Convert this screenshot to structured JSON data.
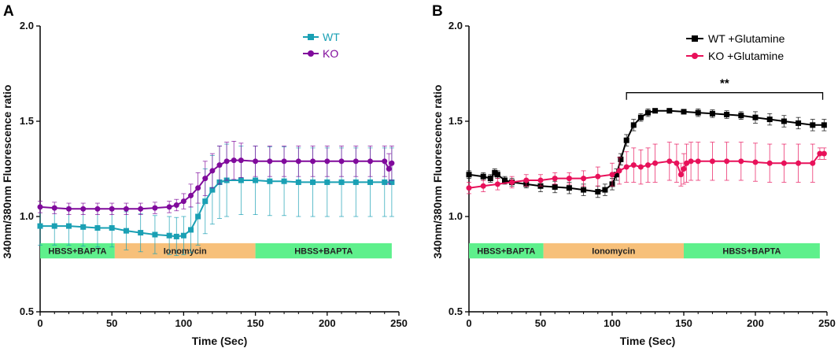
{
  "colors": {
    "wt": "#1aa0b4",
    "ko": "#800a9c",
    "wt_glut": "#000000",
    "ko_glut": "#e8115a",
    "bar_hbss": "#5ef08c",
    "bar_iono": "#f7c07a"
  },
  "chart_data": [
    {
      "panel_label": "A",
      "type": "line",
      "title": "",
      "xlabel": "Time (Sec)",
      "ylabel": "340nm/380nm Fluorescence ratio",
      "xlim": [
        0,
        250
      ],
      "ylim": [
        0.5,
        2.0
      ],
      "xticks": [
        "0",
        "50",
        "100",
        "150",
        "200",
        "250"
      ],
      "yticks": [
        "0.5",
        "1.0",
        "1.5",
        "2.0"
      ],
      "legend_position": "top-right",
      "series": [
        {
          "name": "WT",
          "color_key": "wt",
          "marker": "square",
          "x": [
            0,
            10,
            20,
            30,
            40,
            50,
            60,
            70,
            80,
            90,
            95,
            100,
            105,
            110,
            115,
            120,
            125,
            130,
            140,
            150,
            160,
            170,
            180,
            190,
            200,
            210,
            220,
            230,
            240,
            245
          ],
          "y": [
            0.95,
            0.95,
            0.95,
            0.945,
            0.94,
            0.94,
            0.925,
            0.915,
            0.905,
            0.9,
            0.895,
            0.9,
            0.93,
            1.0,
            1.08,
            1.14,
            1.18,
            1.19,
            1.19,
            1.19,
            1.185,
            1.185,
            1.18,
            1.18,
            1.18,
            1.18,
            1.18,
            1.18,
            1.18,
            1.18
          ],
          "err": [
            0.1,
            0.1,
            0.1,
            0.1,
            0.1,
            0.1,
            0.1,
            0.1,
            0.1,
            0.1,
            0.1,
            0.1,
            0.12,
            0.15,
            0.17,
            0.18,
            0.19,
            0.19,
            0.18,
            0.18,
            0.18,
            0.18,
            0.18,
            0.18,
            0.18,
            0.18,
            0.18,
            0.18,
            0.18,
            0.18
          ]
        },
        {
          "name": "KO",
          "color_key": "ko",
          "marker": "circle",
          "x": [
            0,
            10,
            20,
            30,
            40,
            50,
            60,
            70,
            80,
            90,
            95,
            100,
            105,
            110,
            115,
            120,
            125,
            130,
            135,
            140,
            150,
            160,
            170,
            180,
            190,
            200,
            210,
            220,
            230,
            240,
            243,
            245
          ],
          "y": [
            1.05,
            1.045,
            1.04,
            1.04,
            1.04,
            1.04,
            1.04,
            1.04,
            1.045,
            1.05,
            1.06,
            1.08,
            1.11,
            1.15,
            1.2,
            1.24,
            1.27,
            1.29,
            1.295,
            1.295,
            1.29,
            1.29,
            1.29,
            1.29,
            1.29,
            1.29,
            1.29,
            1.29,
            1.29,
            1.29,
            1.25,
            1.28
          ],
          "err": [
            0.03,
            0.03,
            0.03,
            0.03,
            0.03,
            0.03,
            0.03,
            0.03,
            0.03,
            0.03,
            0.03,
            0.04,
            0.06,
            0.08,
            0.09,
            0.09,
            0.1,
            0.1,
            0.1,
            0.09,
            0.08,
            0.08,
            0.08,
            0.08,
            0.08,
            0.08,
            0.08,
            0.08,
            0.08,
            0.08,
            0.08,
            0.09
          ]
        }
      ],
      "treatment_bar": [
        {
          "label": "HBSS+BAPTA",
          "start": 0,
          "end": 52,
          "color_key": "bar_hbss"
        },
        {
          "label": "Ionomycin",
          "start": 52,
          "end": 150,
          "color_key": "bar_iono"
        },
        {
          "label": "HBSS+BAPTA",
          "start": 150,
          "end": 245,
          "color_key": "bar_hbss"
        }
      ],
      "treatment_bar_y": [
        0.78,
        0.86
      ]
    },
    {
      "panel_label": "B",
      "type": "line",
      "title": "",
      "xlabel": "Time (Sec)",
      "ylabel": "340nm/380nm Fluorescence ratio",
      "xlim": [
        0,
        250
      ],
      "ylim": [
        0.5,
        2.0
      ],
      "xticks": [
        "0",
        "50",
        "100",
        "150",
        "200",
        "250"
      ],
      "yticks": [
        "0.5",
        "1.0",
        "1.5",
        "2.0"
      ],
      "legend_position": "top-right",
      "significance": {
        "label": "**",
        "x_start": 110,
        "x_end": 247,
        "y": 1.65
      },
      "series": [
        {
          "name": "WT +Glutamine",
          "color_key": "wt_glut",
          "marker": "square",
          "x": [
            0,
            10,
            15,
            18,
            20,
            25,
            30,
            40,
            50,
            60,
            70,
            80,
            90,
            95,
            100,
            103,
            106,
            110,
            115,
            120,
            125,
            130,
            140,
            150,
            160,
            170,
            180,
            190,
            200,
            210,
            220,
            230,
            240,
            248
          ],
          "y": [
            1.22,
            1.21,
            1.2,
            1.23,
            1.22,
            1.19,
            1.18,
            1.17,
            1.16,
            1.155,
            1.15,
            1.14,
            1.13,
            1.14,
            1.17,
            1.22,
            1.3,
            1.4,
            1.48,
            1.52,
            1.545,
            1.555,
            1.555,
            1.55,
            1.545,
            1.54,
            1.535,
            1.53,
            1.52,
            1.51,
            1.5,
            1.49,
            1.48,
            1.48
          ],
          "err": [
            0.02,
            0.02,
            0.02,
            0.02,
            0.02,
            0.02,
            0.02,
            0.02,
            0.03,
            0.03,
            0.03,
            0.03,
            0.03,
            0.03,
            0.03,
            0.03,
            0.03,
            0.03,
            0.03,
            0.02,
            0.02,
            0.01,
            0.01,
            0.01,
            0.02,
            0.02,
            0.02,
            0.02,
            0.03,
            0.03,
            0.03,
            0.03,
            0.03,
            0.03
          ]
        },
        {
          "name": "KO +Glutamine",
          "color_key": "ko_glut",
          "marker": "circle",
          "x": [
            0,
            10,
            20,
            30,
            40,
            50,
            60,
            70,
            80,
            90,
            100,
            105,
            110,
            115,
            120,
            125,
            130,
            140,
            145,
            148,
            150,
            152,
            155,
            160,
            170,
            180,
            190,
            200,
            210,
            220,
            230,
            240,
            245,
            248
          ],
          "y": [
            1.15,
            1.16,
            1.17,
            1.18,
            1.19,
            1.19,
            1.2,
            1.2,
            1.2,
            1.21,
            1.22,
            1.24,
            1.26,
            1.27,
            1.26,
            1.27,
            1.28,
            1.29,
            1.28,
            1.22,
            1.25,
            1.28,
            1.29,
            1.29,
            1.29,
            1.29,
            1.29,
            1.285,
            1.28,
            1.28,
            1.28,
            1.28,
            1.33,
            1.33
          ],
          "err": [
            0.03,
            0.03,
            0.03,
            0.03,
            0.03,
            0.03,
            0.03,
            0.03,
            0.04,
            0.05,
            0.06,
            0.07,
            0.08,
            0.09,
            0.09,
            0.09,
            0.1,
            0.1,
            0.1,
            0.06,
            0.08,
            0.1,
            0.1,
            0.1,
            0.1,
            0.1,
            0.1,
            0.1,
            0.1,
            0.1,
            0.1,
            0.1,
            0.03,
            0.03
          ]
        }
      ],
      "treatment_bar": [
        {
          "label": "HBSS+BAPTA",
          "start": 0,
          "end": 52,
          "color_key": "bar_hbss"
        },
        {
          "label": "Ionomycin",
          "start": 52,
          "end": 150,
          "color_key": "bar_iono"
        },
        {
          "label": "HBSS+BAPTA",
          "start": 150,
          "end": 245,
          "color_key": "bar_hbss"
        }
      ],
      "treatment_bar_y": [
        0.78,
        0.86
      ]
    }
  ]
}
